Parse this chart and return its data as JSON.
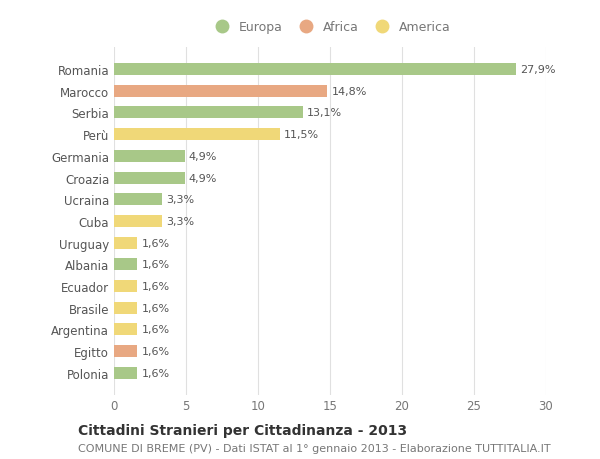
{
  "categories": [
    "Romania",
    "Marocco",
    "Serbia",
    "Perù",
    "Germania",
    "Croazia",
    "Ucraina",
    "Cuba",
    "Uruguay",
    "Albania",
    "Ecuador",
    "Brasile",
    "Argentina",
    "Egitto",
    "Polonia"
  ],
  "values": [
    27.9,
    14.8,
    13.1,
    11.5,
    4.9,
    4.9,
    3.3,
    3.3,
    1.6,
    1.6,
    1.6,
    1.6,
    1.6,
    1.6,
    1.6
  ],
  "labels": [
    "27,9%",
    "14,8%",
    "13,1%",
    "11,5%",
    "4,9%",
    "4,9%",
    "3,3%",
    "3,3%",
    "1,6%",
    "1,6%",
    "1,6%",
    "1,6%",
    "1,6%",
    "1,6%",
    "1,6%"
  ],
  "continents": [
    "Europa",
    "Africa",
    "Europa",
    "America",
    "Europa",
    "Europa",
    "Europa",
    "America",
    "America",
    "Europa",
    "America",
    "America",
    "America",
    "Africa",
    "Europa"
  ],
  "colors": {
    "Europa": "#a8c888",
    "Africa": "#e8a882",
    "America": "#f0d878"
  },
  "legend_order": [
    "Europa",
    "Africa",
    "America"
  ],
  "xlim": [
    0,
    30
  ],
  "xticks": [
    0,
    5,
    10,
    15,
    20,
    25,
    30
  ],
  "title": "Cittadini Stranieri per Cittadinanza - 2013",
  "subtitle": "COMUNE DI BREME (PV) - Dati ISTAT al 1° gennaio 2013 - Elaborazione TUTTITALIA.IT",
  "background_color": "#ffffff",
  "grid_color": "#e0e0e0",
  "bar_height": 0.55,
  "label_fontsize": 8,
  "title_fontsize": 10,
  "subtitle_fontsize": 8,
  "tick_fontsize": 8.5,
  "legend_fontsize": 9
}
